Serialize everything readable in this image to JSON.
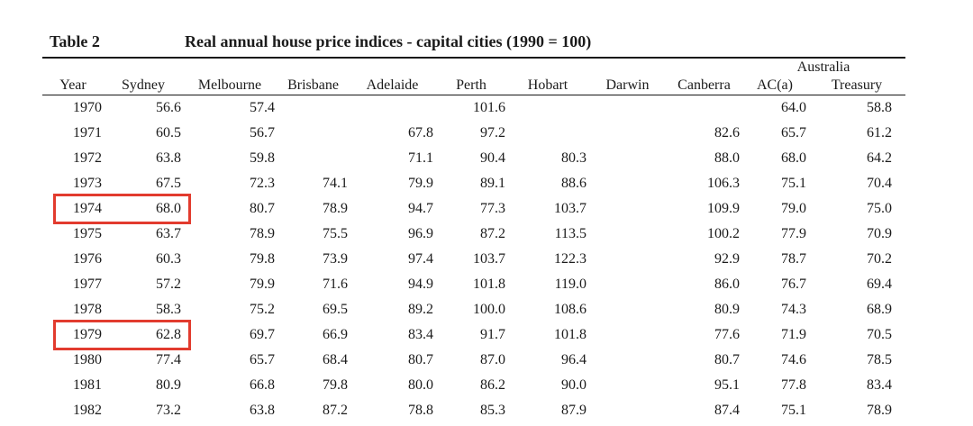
{
  "table": {
    "label": "Table 2",
    "title": "Real annual house price indices - capital cities (1990 = 100)",
    "group_header": "Australia",
    "columns": [
      "Year",
      "Sydney",
      "Melbourne",
      "Brisbane",
      "Adelaide",
      "Perth",
      "Hobart",
      "Darwin",
      "Canberra",
      "AC(a)",
      "Treasury"
    ],
    "rows": [
      [
        "1970",
        "56.6",
        "57.4",
        "",
        "",
        "101.6",
        "",
        "",
        "",
        "64.0",
        "58.8"
      ],
      [
        "1971",
        "60.5",
        "56.7",
        "",
        "67.8",
        "97.2",
        "",
        "",
        "82.6",
        "65.7",
        "61.2"
      ],
      [
        "1972",
        "63.8",
        "59.8",
        "",
        "71.1",
        "90.4",
        "80.3",
        "",
        "88.0",
        "68.0",
        "64.2"
      ],
      [
        "1973",
        "67.5",
        "72.3",
        "74.1",
        "79.9",
        "89.1",
        "88.6",
        "",
        "106.3",
        "75.1",
        "70.4"
      ],
      [
        "1974",
        "68.0",
        "80.7",
        "78.9",
        "94.7",
        "77.3",
        "103.7",
        "",
        "109.9",
        "79.0",
        "75.0"
      ],
      [
        "1975",
        "63.7",
        "78.9",
        "75.5",
        "96.9",
        "87.2",
        "113.5",
        "",
        "100.2",
        "77.9",
        "70.9"
      ],
      [
        "1976",
        "60.3",
        "79.8",
        "73.9",
        "97.4",
        "103.7",
        "122.3",
        "",
        "92.9",
        "78.7",
        "70.2"
      ],
      [
        "1977",
        "57.2",
        "79.9",
        "71.6",
        "94.9",
        "101.8",
        "119.0",
        "",
        "86.0",
        "76.7",
        "69.4"
      ],
      [
        "1978",
        "58.3",
        "75.2",
        "69.5",
        "89.2",
        "100.0",
        "108.6",
        "",
        "80.9",
        "74.3",
        "68.9"
      ],
      [
        "1979",
        "62.8",
        "69.7",
        "66.9",
        "83.4",
        "91.7",
        "101.8",
        "",
        "77.6",
        "71.9",
        "70.5"
      ],
      [
        "1980",
        "77.4",
        "65.7",
        "68.4",
        "80.7",
        "87.0",
        "96.4",
        "",
        "80.7",
        "74.6",
        "78.5"
      ],
      [
        "1981",
        "80.9",
        "66.8",
        "79.8",
        "80.0",
        "86.2",
        "90.0",
        "",
        "95.1",
        "77.8",
        "83.4"
      ],
      [
        "1982",
        "73.2",
        "63.8",
        "87.2",
        "78.8",
        "85.3",
        "87.9",
        "",
        "87.4",
        "75.1",
        "78.9"
      ]
    ],
    "highlighted_rows": [
      "1974",
      "1979"
    ],
    "highlight_color": "#e23b2e",
    "text_color": "#1b1b1b"
  }
}
